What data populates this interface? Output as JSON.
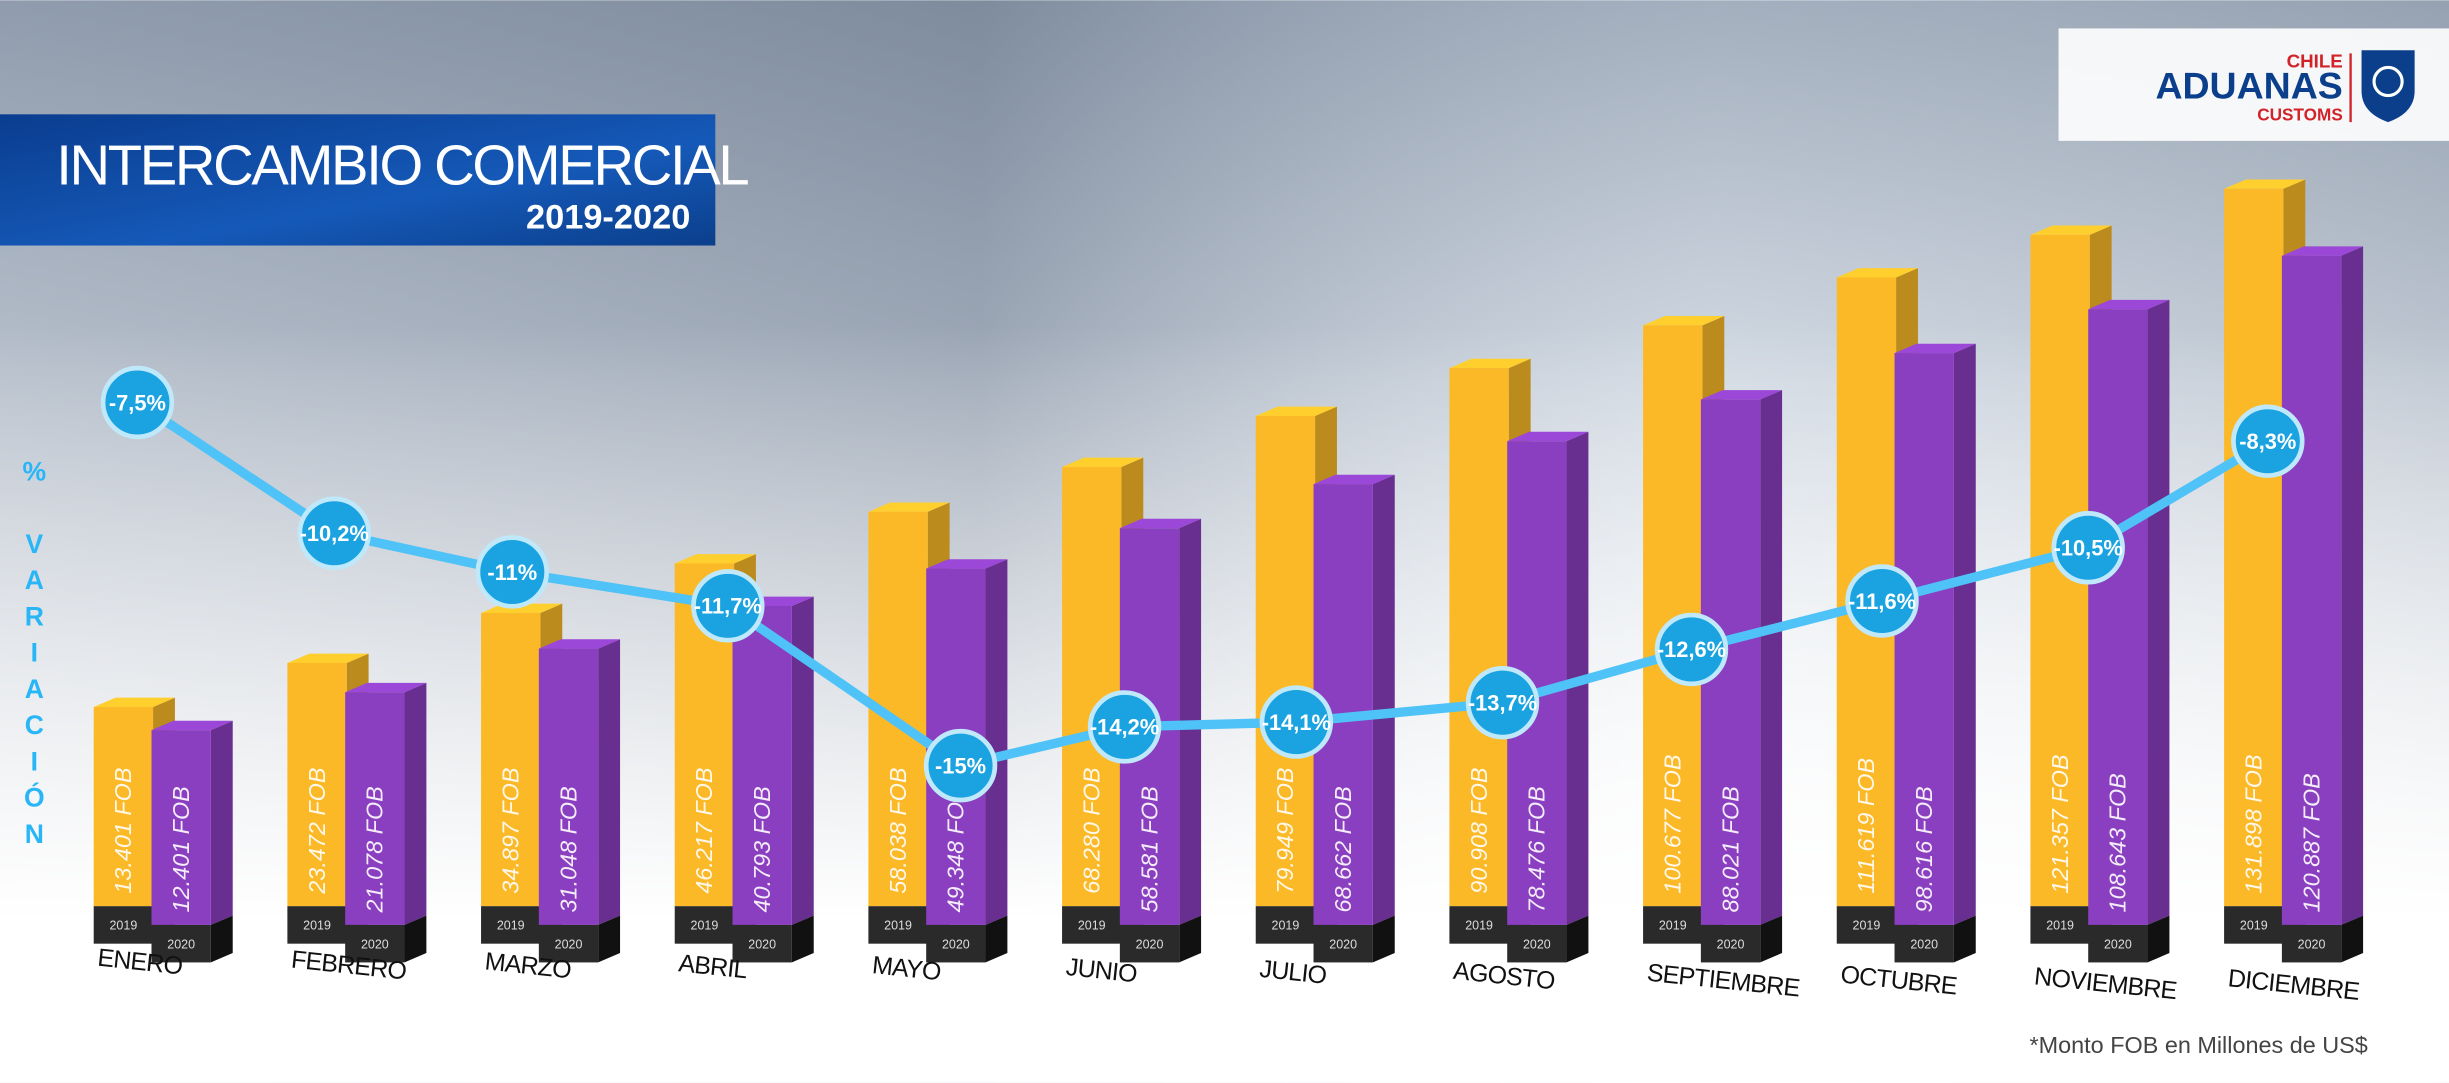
{
  "logo": {
    "top": "CHILE",
    "brand": "ADUANAS",
    "bottom": "CUSTOMS"
  },
  "chart_data": {
    "type": "bar",
    "title": "INTERCAMBIO COMERCIAL",
    "subtitle": "2019-2020",
    "note": "*Monto FOB en Millones de US$",
    "categories": [
      "ENERO",
      "FEBRERO",
      "MARZO",
      "ABRIL",
      "MAYO",
      "JUNIO",
      "JULIO",
      "AGOSTO",
      "SEPTIEMBRE",
      "OCTUBRE",
      "NOVIEMBRE",
      "DICIEMBRE"
    ],
    "series": [
      {
        "name": "2019",
        "color": "#fbb928",
        "values": [
          13401,
          23472,
          34897,
          46217,
          58038,
          68280,
          79949,
          90908,
          100677,
          111619,
          121357,
          131898
        ],
        "value_labels": [
          "13.401 FOB",
          "23.472 FOB",
          "34.897 FOB",
          "46.217 FOB",
          "58.038 FOB",
          "68.280 FOB",
          "79.949 FOB",
          "90.908 FOB",
          "100.677 FOB",
          "111.619 FOB",
          "121.357 FOB",
          "131.898 FOB"
        ]
      },
      {
        "name": "2020",
        "color": "#8a3fc0",
        "values": [
          12401,
          21078,
          31048,
          40793,
          49348,
          58581,
          68662,
          78476,
          88021,
          98616,
          108643,
          120887
        ],
        "value_labels": [
          "12.401 FOB",
          "21.078 FOB",
          "31.048 FOB",
          "40.793 FOB",
          "49.348 FOB",
          "58.581 FOB",
          "68.662 FOB",
          "78.476 FOB",
          "88.021 FOB",
          "98.616 FOB",
          "108.643 FOB",
          "120.887 FOB"
        ]
      },
      {
        "name": "% VARIACIÓN",
        "type": "line",
        "axis": "y2",
        "color": "#4fc3f7",
        "values": [
          -7.5,
          -10.2,
          -11,
          -11.7,
          -15,
          -14.2,
          -14.1,
          -13.7,
          -12.6,
          -11.6,
          -10.5,
          -8.3
        ],
        "value_labels": [
          "-7,5%",
          "-10,2%",
          "-11%",
          "-11,7%",
          "-15%",
          "-14,2%",
          "-14,1%",
          "-13,7%",
          "-12,6%",
          "-11,6%",
          "-10,5%",
          "-8,3%"
        ]
      }
    ]
  }
}
